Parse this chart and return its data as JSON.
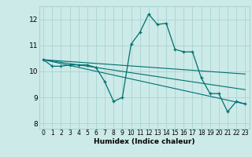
{
  "title": "",
  "xlabel": "Humidex (Indice chaleur)",
  "bg_color": "#cceae8",
  "grid_color": "#aad4d2",
  "line_color": "#007070",
  "xlim": [
    -0.5,
    23.5
  ],
  "ylim": [
    7.8,
    12.5
  ],
  "xticks": [
    0,
    1,
    2,
    3,
    4,
    5,
    6,
    7,
    8,
    9,
    10,
    11,
    12,
    13,
    14,
    15,
    16,
    17,
    18,
    19,
    20,
    21,
    22,
    23
  ],
  "yticks": [
    8,
    9,
    10,
    11,
    12
  ],
  "series": {
    "main": {
      "x": [
        0,
        1,
        2,
        3,
        4,
        5,
        6,
        7,
        8,
        9,
        10,
        11,
        12,
        13,
        14,
        15,
        16,
        17,
        18,
        19,
        20,
        21,
        22,
        23
      ],
      "y": [
        10.45,
        10.2,
        10.2,
        10.25,
        10.25,
        10.25,
        10.15,
        9.6,
        8.85,
        9.0,
        11.05,
        11.5,
        12.2,
        11.8,
        11.85,
        10.85,
        10.75,
        10.75,
        9.75,
        9.15,
        9.15,
        8.45,
        8.85,
        8.75
      ]
    },
    "trend1": {
      "x": [
        0,
        23
      ],
      "y": [
        10.45,
        8.75
      ]
    },
    "trend2": {
      "x": [
        0,
        23
      ],
      "y": [
        10.45,
        9.3
      ]
    },
    "trend3": {
      "x": [
        0,
        23
      ],
      "y": [
        10.45,
        9.9
      ]
    }
  }
}
